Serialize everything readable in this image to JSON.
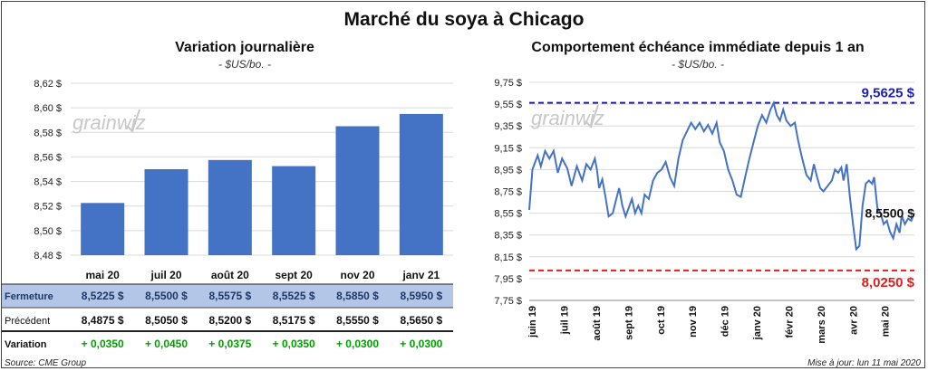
{
  "title": "Marché du soya à Chicago",
  "left": {
    "title": "Variation journalière",
    "unit": "- $US/bo. -",
    "watermark": "grainwiz",
    "chart_data": {
      "type": "bar",
      "categories": [
        "mai 20",
        "juil 20",
        "août 20",
        "sept 20",
        "nov 20",
        "janv 21"
      ],
      "values": [
        8.5225,
        8.55,
        8.5575,
        8.5525,
        8.585,
        8.595
      ],
      "ylim": [
        8.48,
        8.62
      ],
      "yticks": [
        "8,48 $",
        "8,50 $",
        "8,52 $",
        "8,54 $",
        "8,56 $",
        "8,58 $",
        "8,60 $",
        "8,62 $"
      ],
      "color": "#4472C4",
      "grid": true
    },
    "table": {
      "rows": [
        {
          "label": "Fermeture",
          "values": [
            "8,5225  $",
            "8,5500  $",
            "8,5575  $",
            "8,5525  $",
            "8,5850  $",
            "8,5950  $"
          ]
        },
        {
          "label": "Précédent",
          "values": [
            "8,4875  $",
            "8,5050  $",
            "8,5200  $",
            "8,5175  $",
            "8,5550  $",
            "8,5650  $"
          ]
        },
        {
          "label": "Variation",
          "values": [
            "+ 0,0350",
            "+ 0,0450",
            "+ 0,0375",
            "+ 0,0350",
            "+ 0,0300",
            "+ 0,0300"
          ]
        }
      ],
      "highlight_color": "#B4C6E7",
      "label_color": "#1F3864",
      "positive_color": "#00A000"
    }
  },
  "right": {
    "title": "Comportement  échéance immédiate depuis 1 an",
    "unit": "- $US/bo. -",
    "watermark": "grainwiz",
    "chart_data": {
      "type": "line",
      "ylim": [
        7.75,
        9.75
      ],
      "yticks": [
        "7,75 $",
        "7,95 $",
        "8,15 $",
        "8,35 $",
        "8,55 $",
        "8,75 $",
        "8,95 $",
        "9,15 $",
        "9,35 $",
        "9,55 $",
        "9,75 $"
      ],
      "xlabels": [
        "juin 19",
        "juil 19",
        "août 19",
        "sept 19",
        "oct 19",
        "nov 19",
        "déc 19",
        "janv 20",
        "févr 20",
        "mars 20",
        "avr 20",
        "mai 20"
      ],
      "x_start": "2019-05-13",
      "x_end": "2020-05-11",
      "series": [
        {
          "color": "#4472C4",
          "points": [
            [
              "2019-05-13",
              8.58
            ],
            [
              "2019-05-16",
              8.95
            ],
            [
              "2019-05-21",
              9.08
            ],
            [
              "2019-05-24",
              8.98
            ],
            [
              "2019-05-28",
              9.12
            ],
            [
              "2019-06-01",
              9.05
            ],
            [
              "2019-06-05",
              9.12
            ],
            [
              "2019-06-09",
              8.92
            ],
            [
              "2019-06-13",
              9.05
            ],
            [
              "2019-06-18",
              8.96
            ],
            [
              "2019-06-22",
              8.8
            ],
            [
              "2019-06-27",
              8.98
            ],
            [
              "2019-07-02",
              8.85
            ],
            [
              "2019-07-06",
              9.0
            ],
            [
              "2019-07-10",
              8.95
            ],
            [
              "2019-07-14",
              9.05
            ],
            [
              "2019-07-16",
              8.95
            ],
            [
              "2019-07-18",
              8.78
            ],
            [
              "2019-07-21",
              8.86
            ],
            [
              "2019-07-24",
              8.7
            ],
            [
              "2019-07-27",
              8.52
            ],
            [
              "2019-07-31",
              8.55
            ],
            [
              "2019-08-03",
              8.67
            ],
            [
              "2019-08-06",
              8.78
            ],
            [
              "2019-08-09",
              8.62
            ],
            [
              "2019-08-12",
              8.52
            ],
            [
              "2019-08-15",
              8.6
            ],
            [
              "2019-08-18",
              8.68
            ],
            [
              "2019-08-21",
              8.55
            ],
            [
              "2019-08-24",
              8.62
            ],
            [
              "2019-08-27",
              8.55
            ],
            [
              "2019-08-30",
              8.72
            ],
            [
              "2019-09-03",
              8.68
            ],
            [
              "2019-09-07",
              8.85
            ],
            [
              "2019-09-11",
              8.92
            ],
            [
              "2019-09-15",
              8.95
            ],
            [
              "2019-09-19",
              9.02
            ],
            [
              "2019-09-23",
              8.88
            ],
            [
              "2019-09-27",
              8.8
            ],
            [
              "2019-10-01",
              9.05
            ],
            [
              "2019-10-05",
              9.22
            ],
            [
              "2019-10-09",
              9.3
            ],
            [
              "2019-10-13",
              9.38
            ],
            [
              "2019-10-17",
              9.32
            ],
            [
              "2019-10-21",
              9.38
            ],
            [
              "2019-10-25",
              9.3
            ],
            [
              "2019-10-29",
              9.36
            ],
            [
              "2019-11-02",
              9.28
            ],
            [
              "2019-11-06",
              9.38
            ],
            [
              "2019-11-09",
              9.2
            ],
            [
              "2019-11-13",
              9.12
            ],
            [
              "2019-11-17",
              8.95
            ],
            [
              "2019-11-21",
              8.85
            ],
            [
              "2019-11-25",
              8.72
            ],
            [
              "2019-11-29",
              8.7
            ],
            [
              "2019-12-03",
              8.88
            ],
            [
              "2019-12-07",
              9.05
            ],
            [
              "2019-12-11",
              9.2
            ],
            [
              "2019-12-15",
              9.35
            ],
            [
              "2019-12-19",
              9.45
            ],
            [
              "2019-12-23",
              9.38
            ],
            [
              "2019-12-27",
              9.5
            ],
            [
              "2019-12-30",
              9.56
            ],
            [
              "2020-01-02",
              9.45
            ],
            [
              "2020-01-05",
              9.4
            ],
            [
              "2020-01-08",
              9.5
            ],
            [
              "2020-01-11",
              9.4
            ],
            [
              "2020-01-15",
              9.35
            ],
            [
              "2020-01-19",
              9.38
            ],
            [
              "2020-01-22",
              9.22
            ],
            [
              "2020-01-26",
              9.05
            ],
            [
              "2020-01-30",
              8.9
            ],
            [
              "2020-02-03",
              8.85
            ],
            [
              "2020-02-06",
              9.0
            ],
            [
              "2020-02-09",
              8.88
            ],
            [
              "2020-02-12",
              8.78
            ],
            [
              "2020-02-15",
              8.75
            ],
            [
              "2020-02-19",
              8.8
            ],
            [
              "2020-02-23",
              8.85
            ],
            [
              "2020-02-26",
              8.95
            ],
            [
              "2020-02-29",
              8.92
            ],
            [
              "2020-03-03",
              8.97
            ],
            [
              "2020-03-05",
              8.85
            ],
            [
              "2020-03-08",
              9.0
            ],
            [
              "2020-03-11",
              8.7
            ],
            [
              "2020-03-14",
              8.45
            ],
            [
              "2020-03-17",
              8.22
            ],
            [
              "2020-03-20",
              8.25
            ],
            [
              "2020-03-23",
              8.62
            ],
            [
              "2020-03-26",
              8.82
            ],
            [
              "2020-03-29",
              8.85
            ],
            [
              "2020-04-01",
              8.82
            ],
            [
              "2020-04-03",
              8.88
            ],
            [
              "2020-04-06",
              8.6
            ],
            [
              "2020-04-09",
              8.55
            ],
            [
              "2020-04-12",
              8.45
            ],
            [
              "2020-04-15",
              8.48
            ],
            [
              "2020-04-18",
              8.38
            ],
            [
              "2020-04-21",
              8.32
            ],
            [
              "2020-04-24",
              8.45
            ],
            [
              "2020-04-27",
              8.37
            ],
            [
              "2020-04-29",
              8.53
            ],
            [
              "2020-05-02",
              8.45
            ],
            [
              "2020-05-05",
              8.5
            ],
            [
              "2020-05-08",
              8.48
            ],
            [
              "2020-05-11",
              8.55
            ]
          ]
        }
      ],
      "reference_lines": [
        {
          "value": 9.5625,
          "label": "9,5625  $",
          "color": "#1F1FAF"
        },
        {
          "value": 8.025,
          "label": "8,0250  $",
          "color": "#E02020"
        }
      ],
      "last_label": "8,5500 $",
      "last_value": 8.55
    }
  },
  "footer": {
    "source": "Source: CME Group",
    "update": "Mise à jour: lun 11 mai 2020"
  }
}
